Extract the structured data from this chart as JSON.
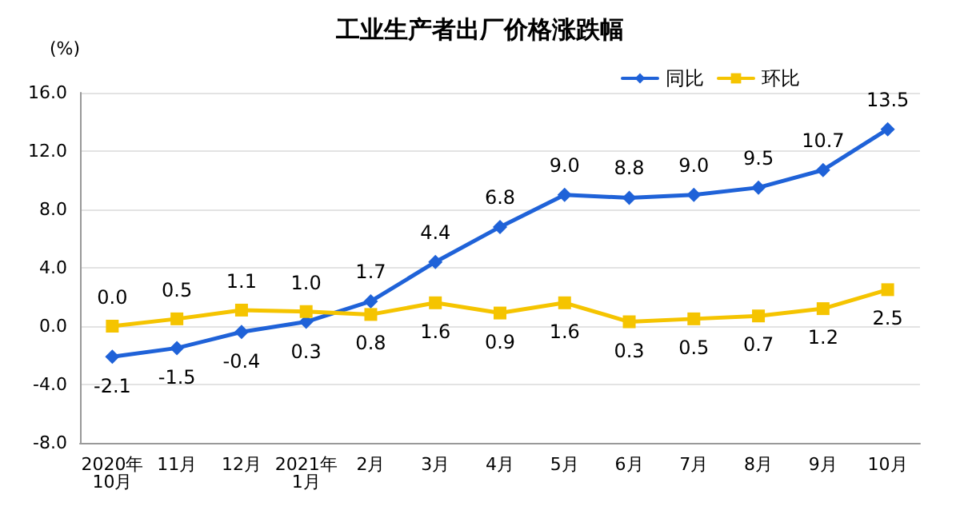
{
  "chart_data": {
    "type": "line",
    "title": "工业生产者出厂价格涨跌幅",
    "ylabel": "(%)",
    "categories": [
      "2020年\n10月",
      "11月",
      "12月",
      "2021年\n1月",
      "2月",
      "3月",
      "4月",
      "5月",
      "6月",
      "7月",
      "8月",
      "9月",
      "10月"
    ],
    "series": [
      {
        "name": "同比",
        "color": "#1f62d8",
        "marker": "diamond",
        "values": [
          -2.1,
          -1.5,
          -0.4,
          0.3,
          1.7,
          4.4,
          6.8,
          9.0,
          8.8,
          9.0,
          9.5,
          10.7,
          13.5
        ],
        "value_labels": [
          "-2.1",
          "-1.5",
          "-0.4",
          "0.3",
          "1.7",
          "4.4",
          "6.8",
          "9.0",
          "8.8",
          "9.0",
          "9.5",
          "10.7",
          "13.5"
        ]
      },
      {
        "name": "环比",
        "color": "#f5c400",
        "marker": "square",
        "values": [
          0.0,
          0.5,
          1.1,
          1.0,
          0.8,
          1.6,
          0.9,
          1.6,
          0.3,
          0.5,
          0.7,
          1.2,
          2.5
        ],
        "value_labels": [
          "0.0",
          "0.5",
          "1.1",
          "1.0",
          "0.8",
          "1.6",
          "0.9",
          "1.6",
          "0.3",
          "0.5",
          "0.7",
          "1.2",
          "2.5"
        ]
      }
    ],
    "ylim": [
      -8,
      16
    ],
    "yticks": [
      {
        "value": -8,
        "label": "-8.0"
      },
      {
        "value": -4,
        "label": "-4.0"
      },
      {
        "value": 0,
        "label": "0.0"
      },
      {
        "value": 4,
        "label": "4.0"
      },
      {
        "value": 8,
        "label": "8.0"
      },
      {
        "value": 12,
        "label": "12.0"
      },
      {
        "value": 16,
        "label": "16.0"
      }
    ],
    "grid": "y",
    "legend": "top right"
  }
}
